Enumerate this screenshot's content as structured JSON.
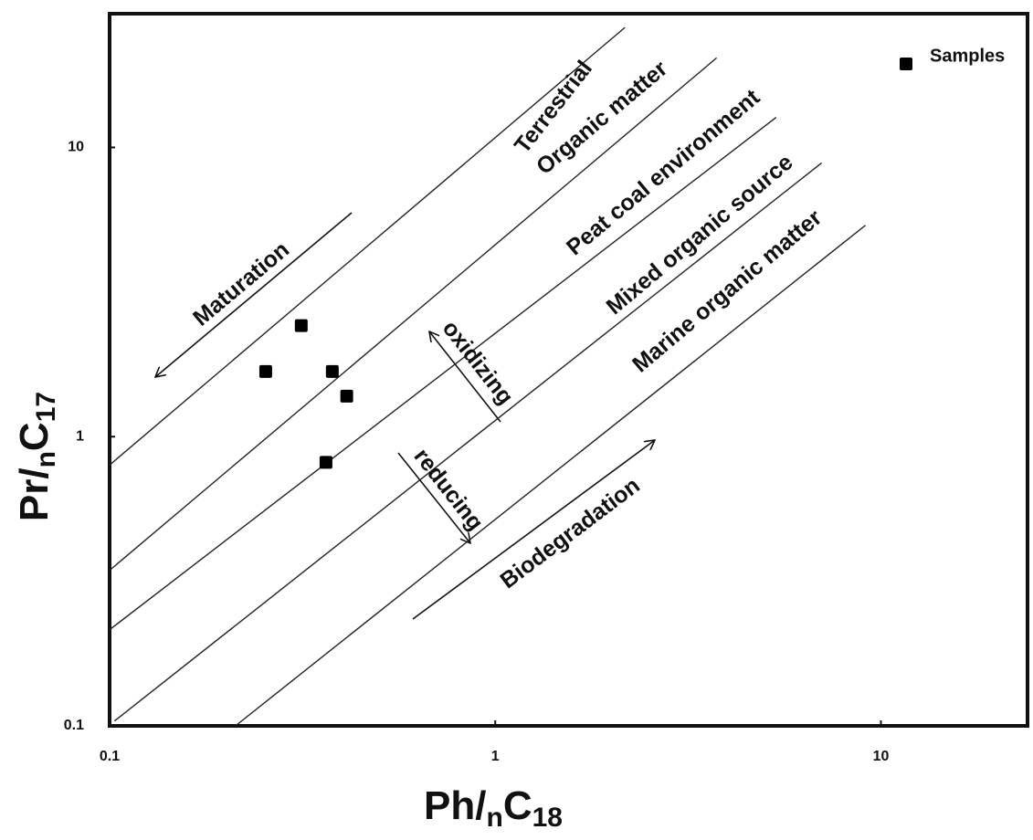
{
  "chart_data": {
    "type": "scatter",
    "log_x": true,
    "log_y": true,
    "xlim": [
      0.1,
      24
    ],
    "ylim": [
      0.1,
      29
    ],
    "xticks": [
      0.1,
      1,
      10
    ],
    "yticks": [
      0.1,
      1,
      10
    ],
    "x_label": [
      "Ph/",
      "n",
      "C",
      "18"
    ],
    "y_label": [
      "Pr/",
      "n",
      "C",
      "17"
    ],
    "legend": "top-right",
    "series": [
      {
        "name": "Samples",
        "color": "#000000",
        "x": [
          0.254,
          0.314,
          0.378,
          0.412,
          0.364
        ],
        "values": [
          1.68,
          2.42,
          1.68,
          1.38,
          0.815
        ]
      }
    ],
    "lines": [
      {
        "x": [
          0.1,
          2.17
        ],
        "y": [
          0.798,
          26.0
        ]
      },
      {
        "x": [
          0.1,
          3.75
        ],
        "y": [
          0.345,
          20.4
        ]
      },
      {
        "x": [
          0.1,
          5.35
        ],
        "y": [
          0.215,
          12.7
        ]
      },
      {
        "x": [
          0.103,
          7.02
        ],
        "y": [
          0.104,
          8.84
        ]
      },
      {
        "x": [
          0.212,
          9.12
        ],
        "y": [
          0.1,
          5.38
        ]
      }
    ],
    "annotations": [
      "Terrestrial",
      "Organic matter",
      "Peat coal environment",
      "Mixed organic source",
      "Marine organic matter",
      "Maturation",
      "Biodegradation",
      "oxidizing",
      "reducing"
    ]
  }
}
